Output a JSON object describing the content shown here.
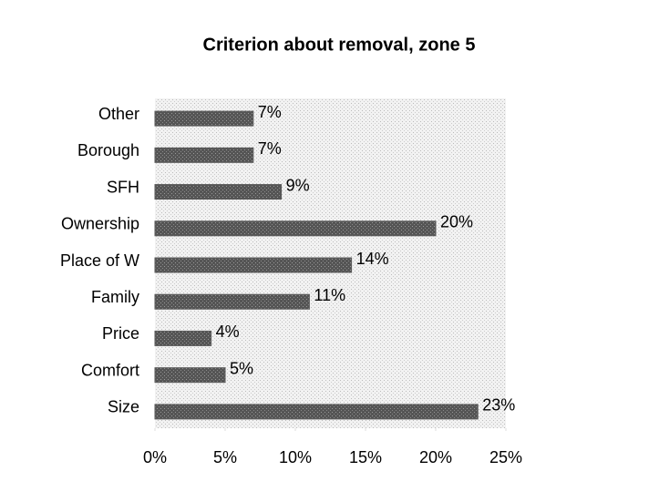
{
  "chart_data": {
    "type": "bar",
    "orientation": "horizontal",
    "title": "Criterion about removal, zone 5",
    "categories": [
      "Other",
      "Borough",
      "SFH",
      "Ownership",
      "Place of W",
      "Family",
      "Price",
      "Comfort",
      "Size"
    ],
    "values": [
      7,
      7,
      9,
      20,
      14,
      11,
      4,
      5,
      23
    ],
    "value_labels": [
      "7%",
      "7%",
      "9%",
      "20%",
      "14%",
      "11%",
      "4%",
      "5%",
      "23%"
    ],
    "color": "#5a5a5a",
    "xlim": [
      0,
      25
    ],
    "xticks": [
      {
        "value": 0,
        "label": "0%"
      },
      {
        "value": 5,
        "label": "5%"
      },
      {
        "value": 10,
        "label": "10%"
      },
      {
        "value": 15,
        "label": "15%"
      },
      {
        "value": 20,
        "label": "20%"
      },
      {
        "value": 25,
        "label": "25%"
      }
    ]
  }
}
